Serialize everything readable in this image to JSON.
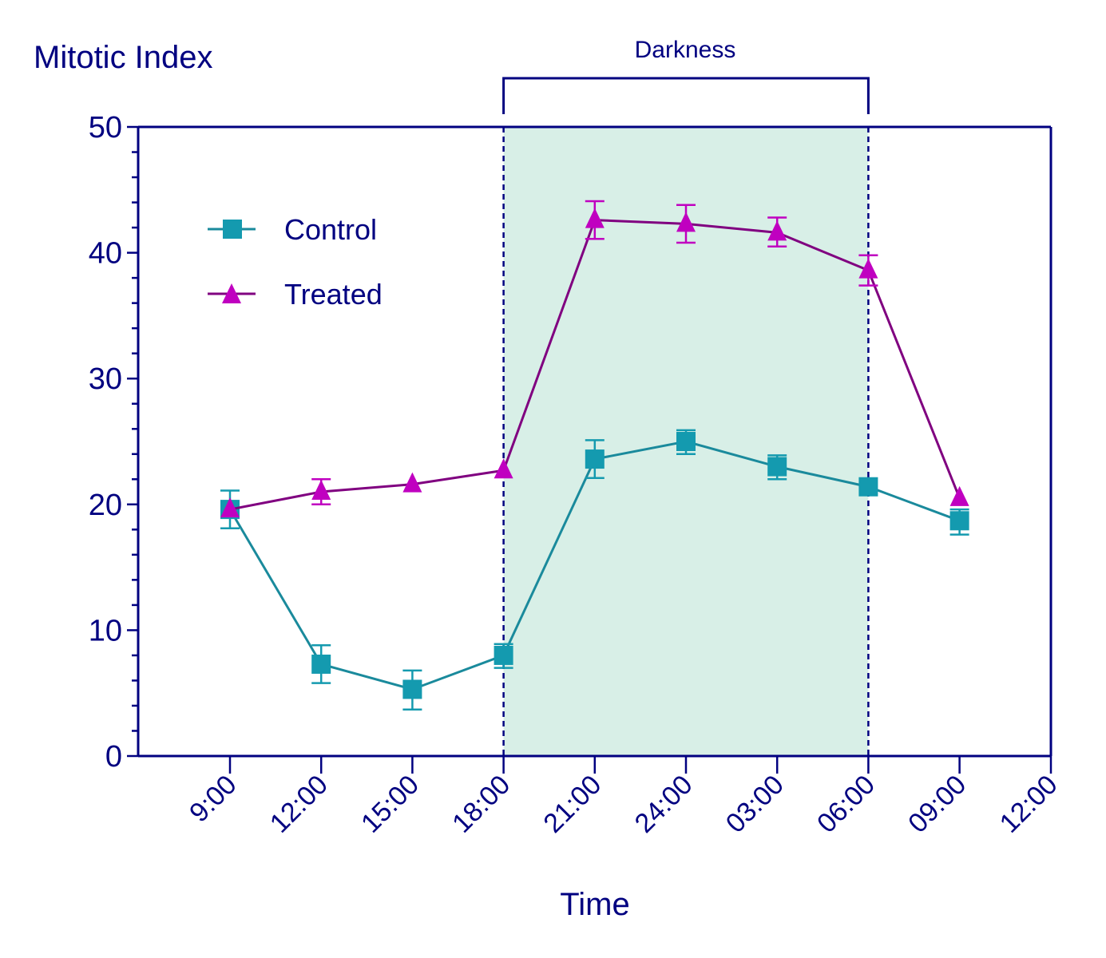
{
  "chart_data": {
    "type": "line",
    "title": "",
    "ylabel": "Mitotic Index",
    "xlabel": "Time",
    "ylim": [
      0,
      50
    ],
    "yticks": [
      0,
      10,
      20,
      30,
      40,
      50
    ],
    "y_minor_tick_step": 2,
    "categories": [
      "9:00",
      "12:00",
      "15:00",
      "18:00",
      "21:00",
      "24:00",
      "03:00",
      "06:00",
      "09:00",
      "12:00"
    ],
    "annotation": {
      "label": "Darkness",
      "from": "18:00",
      "to": "06:00",
      "shade_color": "#d8efe7"
    },
    "legend_position": "upper-left (inside plot)",
    "grid": false,
    "series": [
      {
        "name": "Control",
        "marker": "square",
        "color": "#149aaf",
        "line_color": "#1a8a9c",
        "values": [
          19.6,
          7.3,
          5.3,
          8.0,
          23.6,
          25.0,
          23.0,
          21.4,
          18.7,
          null
        ],
        "error_upper": [
          21.1,
          8.8,
          6.8,
          8.9,
          25.1,
          25.9,
          23.9,
          21.4,
          19.6,
          null
        ],
        "error_lower": [
          18.1,
          5.8,
          3.7,
          7.0,
          22.1,
          24.0,
          22.0,
          21.4,
          17.6,
          null
        ]
      },
      {
        "name": "Treated",
        "marker": "triangle",
        "color": "#c000c0",
        "line_color": "#800080",
        "values": [
          19.6,
          21.0,
          21.6,
          22.7,
          42.6,
          42.3,
          41.6,
          38.6,
          20.5,
          null
        ],
        "error_upper": [
          19.6,
          22.0,
          21.6,
          22.7,
          44.1,
          43.8,
          42.8,
          39.8,
          20.5,
          null
        ],
        "error_lower": [
          19.6,
          20.0,
          21.6,
          22.7,
          41.1,
          40.8,
          40.5,
          37.4,
          20.5,
          null
        ]
      }
    ]
  },
  "labels": {
    "y_title": "Mitotic Index",
    "x_title": "Time",
    "darkness": "Darkness",
    "legend_control": "Control",
    "legend_treated": "Treated"
  },
  "colors": {
    "axis": "#000080",
    "shade": "#d8efe7"
  }
}
